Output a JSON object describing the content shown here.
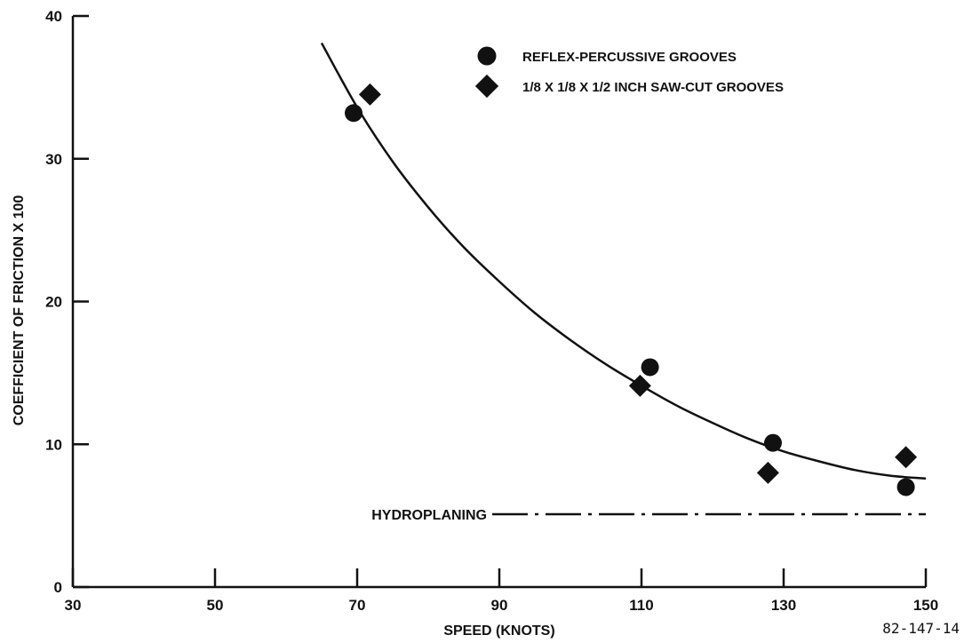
{
  "chart_data": {
    "type": "scatter",
    "xlabel": "SPEED (KNOTS)",
    "ylabel": "COEFFICIENT OF FRICTION X 100",
    "xlim": [
      30,
      150
    ],
    "ylim": [
      0,
      40
    ],
    "x_ticks": [
      30,
      50,
      70,
      90,
      110,
      130,
      150
    ],
    "x_tick_labels": [
      "30",
      "50",
      "70",
      "90",
      "110",
      "130",
      "150"
    ],
    "y_ticks": [
      0,
      10,
      20,
      30,
      40
    ],
    "y_tick_labels": [
      "0",
      "10",
      "20",
      "30",
      "40"
    ],
    "grid": false,
    "legend_position": "top-right",
    "series": [
      {
        "name": "REFLEX-PERCUSSIVE GROOVES",
        "marker": "circle",
        "points": [
          {
            "x": 69.5,
            "y": 33.2
          },
          {
            "x": 111.2,
            "y": 15.4
          },
          {
            "x": 128.5,
            "y": 10.1
          },
          {
            "x": 147.2,
            "y": 7.0
          }
        ]
      },
      {
        "name": "1/8 X 1/8 X 1/2 INCH SAW-CUT GROOVES",
        "marker": "diamond",
        "points": [
          {
            "x": 71.8,
            "y": 34.5
          },
          {
            "x": 109.8,
            "y": 14.1
          },
          {
            "x": 127.8,
            "y": 8.0
          },
          {
            "x": 147.2,
            "y": 9.1
          }
        ]
      }
    ],
    "fit_curve": {
      "points": [
        {
          "x": 65,
          "y": 38.1
        },
        {
          "x": 70,
          "y": 33.6
        },
        {
          "x": 75,
          "y": 29.8
        },
        {
          "x": 80,
          "y": 26.6
        },
        {
          "x": 85,
          "y": 23.8
        },
        {
          "x": 90,
          "y": 21.4
        },
        {
          "x": 95,
          "y": 19.2
        },
        {
          "x": 100,
          "y": 17.3
        },
        {
          "x": 105,
          "y": 15.6
        },
        {
          "x": 110,
          "y": 14.1
        },
        {
          "x": 115,
          "y": 12.7
        },
        {
          "x": 120,
          "y": 11.5
        },
        {
          "x": 125,
          "y": 10.4
        },
        {
          "x": 130,
          "y": 9.5
        },
        {
          "x": 135,
          "y": 8.8
        },
        {
          "x": 140,
          "y": 8.2
        },
        {
          "x": 145,
          "y": 7.8
        },
        {
          "x": 150,
          "y": 7.6
        }
      ]
    },
    "hydroplaning_line": {
      "label": "HYDROPLANING",
      "x_start": 89,
      "x_end": 150,
      "y": 5.1
    },
    "figure_id": "82-147-14"
  }
}
